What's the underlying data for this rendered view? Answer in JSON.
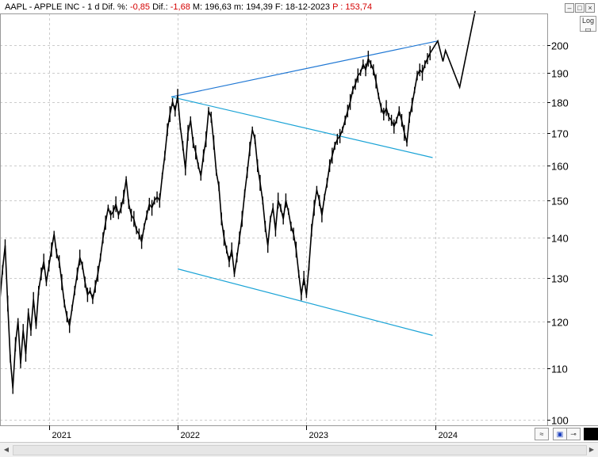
{
  "header": {
    "symbol_name": "AAPL - APPLE INC -",
    "period": "1 d",
    "dif_pct_label": "Dif. %:",
    "dif_pct_value": "-0,85",
    "dif_label": "Dif.:",
    "dif_value": "-1,68",
    "max_label": "M:",
    "max_value": "196,63",
    "min_label": "m:",
    "min_value": "194,39",
    "date_label": "F:",
    "date_value": "18-12-2023",
    "price_label": "P :",
    "price_value": "153,74"
  },
  "log_button": "Log",
  "colors": {
    "price": "#000000",
    "trend": "#1f77d4",
    "channel": "#1aa3d6",
    "grid": "#cccccc",
    "negative": "#d40000"
  },
  "icons": [
    "minimize-icon",
    "maximize-icon",
    "close-icon",
    "log-scale-icon",
    "zoom-icon",
    "save-icon",
    "pin-icon",
    "color-swatch-icon"
  ],
  "chart_data": {
    "type": "line",
    "scale": "log",
    "ylim": [
      99,
      212
    ],
    "y_ticks": [
      100,
      110,
      120,
      130,
      140,
      150,
      160,
      170,
      180,
      190,
      200
    ],
    "x_ticks": [
      {
        "t": 2021.0,
        "label": "2021"
      },
      {
        "t": 2022.0,
        "label": "2022"
      },
      {
        "t": 2023.0,
        "label": "2023"
      },
      {
        "t": 2024.0,
        "label": "2024"
      }
    ],
    "xlim": [
      2020.62,
      2024.87
    ],
    "series": [
      {
        "values": [
          [
            2020.62,
            125
          ],
          [
            2020.64,
            132
          ],
          [
            2020.66,
            138
          ],
          [
            2020.68,
            124
          ],
          [
            2020.7,
            112
          ],
          [
            2020.72,
            106
          ],
          [
            2020.74,
            115
          ],
          [
            2020.76,
            120
          ],
          [
            2020.78,
            111
          ],
          [
            2020.8,
            118
          ],
          [
            2020.82,
            113
          ],
          [
            2020.84,
            122
          ],
          [
            2020.86,
            118
          ],
          [
            2020.88,
            125
          ],
          [
            2020.9,
            119
          ],
          [
            2020.92,
            127
          ],
          [
            2020.94,
            131
          ],
          [
            2020.96,
            134
          ],
          [
            2020.98,
            129
          ],
          [
            2021.0,
            133
          ],
          [
            2021.02,
            137
          ],
          [
            2021.04,
            141
          ],
          [
            2021.06,
            136
          ],
          [
            2021.08,
            134
          ],
          [
            2021.1,
            129
          ],
          [
            2021.12,
            124
          ],
          [
            2021.14,
            121
          ],
          [
            2021.16,
            119
          ],
          [
            2021.18,
            123
          ],
          [
            2021.2,
            127
          ],
          [
            2021.22,
            131
          ],
          [
            2021.24,
            135
          ],
          [
            2021.26,
            133
          ],
          [
            2021.28,
            129
          ],
          [
            2021.3,
            126
          ],
          [
            2021.32,
            127
          ],
          [
            2021.34,
            125
          ],
          [
            2021.36,
            128
          ],
          [
            2021.38,
            131
          ],
          [
            2021.4,
            135
          ],
          [
            2021.42,
            140
          ],
          [
            2021.44,
            144
          ],
          [
            2021.46,
            148
          ],
          [
            2021.48,
            146
          ],
          [
            2021.5,
            147
          ],
          [
            2021.52,
            149
          ],
          [
            2021.54,
            146
          ],
          [
            2021.56,
            148
          ],
          [
            2021.58,
            151
          ],
          [
            2021.6,
            156
          ],
          [
            2021.62,
            149
          ],
          [
            2021.64,
            146
          ],
          [
            2021.66,
            145
          ],
          [
            2021.68,
            142
          ],
          [
            2021.7,
            141
          ],
          [
            2021.72,
            139
          ],
          [
            2021.74,
            143
          ],
          [
            2021.76,
            146
          ],
          [
            2021.78,
            149
          ],
          [
            2021.8,
            148
          ],
          [
            2021.82,
            150
          ],
          [
            2021.84,
            151
          ],
          [
            2021.86,
            150
          ],
          [
            2021.88,
            157
          ],
          [
            2021.9,
            163
          ],
          [
            2021.92,
            171
          ],
          [
            2021.94,
            176
          ],
          [
            2021.96,
            180
          ],
          [
            2021.98,
            177
          ],
          [
            2022.0,
            182
          ],
          [
            2022.02,
            172
          ],
          [
            2022.04,
            166
          ],
          [
            2022.06,
            159
          ],
          [
            2022.08,
            170
          ],
          [
            2022.1,
            174
          ],
          [
            2022.12,
            167
          ],
          [
            2022.14,
            164
          ],
          [
            2022.16,
            160
          ],
          [
            2022.18,
            157
          ],
          [
            2022.2,
            163
          ],
          [
            2022.22,
            168
          ],
          [
            2022.24,
            177
          ],
          [
            2022.26,
            175
          ],
          [
            2022.28,
            167
          ],
          [
            2022.3,
            158
          ],
          [
            2022.32,
            154
          ],
          [
            2022.34,
            145
          ],
          [
            2022.36,
            140
          ],
          [
            2022.38,
            137
          ],
          [
            2022.4,
            134
          ],
          [
            2022.42,
            137
          ],
          [
            2022.44,
            131
          ],
          [
            2022.46,
            135
          ],
          [
            2022.48,
            140
          ],
          [
            2022.5,
            145
          ],
          [
            2022.52,
            152
          ],
          [
            2022.54,
            158
          ],
          [
            2022.56,
            165
          ],
          [
            2022.58,
            171
          ],
          [
            2022.6,
            168
          ],
          [
            2022.62,
            160
          ],
          [
            2022.64,
            155
          ],
          [
            2022.66,
            150
          ],
          [
            2022.68,
            143
          ],
          [
            2022.7,
            138
          ],
          [
            2022.72,
            145
          ],
          [
            2022.74,
            148
          ],
          [
            2022.76,
            142
          ],
          [
            2022.78,
            150
          ],
          [
            2022.8,
            148
          ],
          [
            2022.82,
            145
          ],
          [
            2022.84,
            150
          ],
          [
            2022.86,
            147
          ],
          [
            2022.88,
            143
          ],
          [
            2022.9,
            141
          ],
          [
            2022.92,
            137
          ],
          [
            2022.94,
            131
          ],
          [
            2022.96,
            126
          ],
          [
            2022.98,
            130
          ],
          [
            2023.0,
            126
          ],
          [
            2023.02,
            133
          ],
          [
            2023.04,
            142
          ],
          [
            2023.06,
            148
          ],
          [
            2023.08,
            153
          ],
          [
            2023.1,
            150
          ],
          [
            2023.12,
            146
          ],
          [
            2023.14,
            151
          ],
          [
            2023.16,
            155
          ],
          [
            2023.18,
            160
          ],
          [
            2023.2,
            163
          ],
          [
            2023.22,
            166
          ],
          [
            2023.24,
            168
          ],
          [
            2023.26,
            169
          ],
          [
            2023.28,
            171
          ],
          [
            2023.3,
            174
          ],
          [
            2023.32,
            177
          ],
          [
            2023.34,
            180
          ],
          [
            2023.36,
            184
          ],
          [
            2023.38,
            186
          ],
          [
            2023.4,
            189
          ],
          [
            2023.42,
            190
          ],
          [
            2023.44,
            193
          ],
          [
            2023.46,
            191
          ],
          [
            2023.48,
            195
          ],
          [
            2023.5,
            193
          ],
          [
            2023.52,
            191
          ],
          [
            2023.54,
            187
          ],
          [
            2023.56,
            182
          ],
          [
            2023.58,
            178
          ],
          [
            2023.6,
            176
          ],
          [
            2023.62,
            178
          ],
          [
            2023.64,
            175
          ],
          [
            2023.66,
            174
          ],
          [
            2023.68,
            172
          ],
          [
            2023.7,
            174
          ],
          [
            2023.72,
            177
          ],
          [
            2023.74,
            174
          ],
          [
            2023.76,
            170
          ],
          [
            2023.78,
            167
          ],
          [
            2023.8,
            175
          ],
          [
            2023.82,
            179
          ],
          [
            2023.84,
            184
          ],
          [
            2023.86,
            189
          ],
          [
            2023.88,
            191
          ],
          [
            2023.9,
            190
          ],
          [
            2023.92,
            193
          ],
          [
            2023.94,
            195
          ],
          [
            2023.96,
            197
          ]
        ]
      }
    ],
    "lines": [
      {
        "role": "upper-trend",
        "from": [
          2021.95,
          181.7
        ],
        "to": [
          2024.02,
          201.5
        ]
      },
      {
        "role": "channel-upper",
        "from": [
          2021.95,
          181.7
        ],
        "to": [
          2023.98,
          162.4
        ]
      },
      {
        "role": "channel-lower",
        "from": [
          2022.0,
          132.2
        ],
        "to": [
          2023.98,
          116.9
        ]
      }
    ],
    "projection": [
      [
        2023.96,
        197
      ],
      [
        2024.02,
        201.5
      ],
      [
        2024.06,
        194
      ],
      [
        2024.08,
        198
      ],
      [
        2024.19,
        185
      ],
      [
        2024.31,
        213
      ]
    ]
  }
}
